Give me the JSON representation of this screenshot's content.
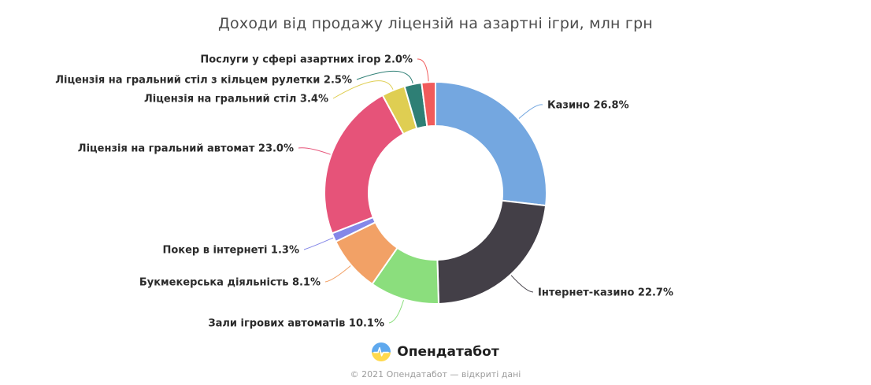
{
  "title": "Доходи від продажу ліцензій на азартні ігри, млн грн",
  "chart_data": {
    "type": "pie",
    "subtype": "donut",
    "title": "Доходи від продажу ліцензій на азартні ігри, млн грн",
    "unit": "млн грн",
    "legend_position": "none",
    "labels": "outside-with-leader-lines",
    "categories": [
      "Казино",
      "Інтернет-казино",
      "Зали ігрових автоматів",
      "Букмекерська діяльність",
      "Покер в інтернеті",
      "Ліцензія на гральний автомат",
      "Ліцензія на гральний стіл",
      "Ліцензія на гральний стіл з кільцем рулетки",
      "Послуги у сфері азартних ігор"
    ],
    "values": [
      26.8,
      22.7,
      10.1,
      8.1,
      1.3,
      23.0,
      3.4,
      2.5,
      2.0
    ],
    "value_format": "percent",
    "colors": [
      "#74A7E0",
      "#433F47",
      "#8BDE7D",
      "#F2A166",
      "#8487E8",
      "#E65379",
      "#DFCE52",
      "#2E7F75",
      "#F15B5B"
    ]
  },
  "branding": {
    "logo_text": "Опендатабот",
    "logo_icon": "pulse-flag-icon",
    "logo_colors": {
      "top": "#5FA9EE",
      "bottom": "#FFD94D",
      "pulse": "#FFFFFF"
    }
  },
  "footer": {
    "copyright": "© 2021 Опендатабот — відкриті дані"
  }
}
